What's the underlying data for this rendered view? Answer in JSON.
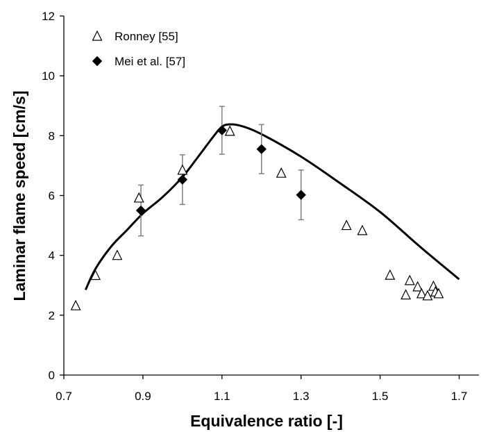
{
  "chart_data": {
    "type": "scatter",
    "title": "",
    "xlabel": "Equivalence ratio [-]",
    "ylabel": "Laminar flame speed [cm/s]",
    "xlim": [
      0.7,
      1.75
    ],
    "ylim": [
      0,
      12
    ],
    "xticks": [
      "0.7",
      "0.9",
      "1.1",
      "1.3",
      "1.5",
      "1.7"
    ],
    "yticks": [
      "0",
      "2",
      "4",
      "6",
      "8",
      "10",
      "12"
    ],
    "grid": false,
    "legend_placement": "top-left",
    "series": [
      {
        "name": "Ronney [55]",
        "marker": "open-triangle",
        "color": "#000000",
        "points": [
          [
            0.73,
            2.32
          ],
          [
            0.78,
            3.33
          ],
          [
            0.835,
            4.0
          ],
          [
            0.89,
            5.92
          ],
          [
            1.0,
            6.85
          ],
          [
            1.12,
            8.15
          ],
          [
            1.25,
            6.75
          ],
          [
            1.415,
            5.0
          ],
          [
            1.455,
            4.83
          ],
          [
            1.525,
            3.34
          ],
          [
            1.565,
            2.68
          ],
          [
            1.575,
            3.16
          ],
          [
            1.595,
            2.95
          ],
          [
            1.605,
            2.72
          ],
          [
            1.62,
            2.65
          ],
          [
            1.635,
            2.97
          ],
          [
            1.64,
            2.78
          ],
          [
            1.648,
            2.72
          ]
        ]
      },
      {
        "name": "Mei et al. [57]",
        "marker": "filled-diamond",
        "color": "#000000",
        "points": [
          [
            0.895,
            5.5,
            0.85
          ],
          [
            1.0,
            6.53,
            0.83
          ],
          [
            1.1,
            8.18,
            0.8
          ],
          [
            1.2,
            7.55,
            0.82
          ],
          [
            1.3,
            6.02,
            0.83
          ]
        ]
      },
      {
        "name": "",
        "style": "line",
        "color": "#000000",
        "points": [
          [
            0.755,
            2.85
          ],
          [
            0.78,
            3.55
          ],
          [
            0.82,
            4.3
          ],
          [
            0.86,
            4.85
          ],
          [
            0.9,
            5.4
          ],
          [
            0.95,
            5.95
          ],
          [
            1.0,
            6.62
          ],
          [
            1.04,
            7.3
          ],
          [
            1.08,
            8.0
          ],
          [
            1.1,
            8.3
          ],
          [
            1.12,
            8.38
          ],
          [
            1.15,
            8.32
          ],
          [
            1.2,
            8.05
          ],
          [
            1.3,
            7.3
          ],
          [
            1.4,
            6.4
          ],
          [
            1.5,
            5.45
          ],
          [
            1.6,
            4.3
          ],
          [
            1.7,
            3.2
          ]
        ]
      }
    ]
  }
}
